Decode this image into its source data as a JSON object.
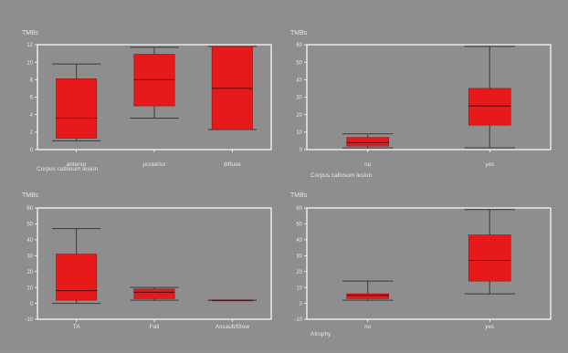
{
  "colors": {
    "background": "#8e8e8e",
    "frame": "#ffffff",
    "box_fill": "#e8191a",
    "box_stroke": "#9a1010",
    "whisker": "#3a3a3a",
    "text": "#e6e6e6"
  },
  "chart_data": [
    {
      "type": "boxplot",
      "ylabel": "TMBs",
      "xlabel": "Corpus callosum lesion",
      "ylim": [
        0,
        12
      ],
      "yticks": [
        0,
        2,
        4,
        6,
        8,
        10,
        12
      ],
      "categories": [
        "anterior",
        "posterior",
        "diffuse"
      ],
      "boxes": [
        {
          "min": 1.0,
          "q1": 1.3,
          "median": 3.6,
          "q3": 8.1,
          "max": 9.8
        },
        {
          "min": 3.6,
          "q1": 5.0,
          "median": 8.0,
          "q3": 10.9,
          "max": 11.7
        },
        {
          "min": 2.3,
          "q1": 2.3,
          "median": 7.0,
          "q3": 11.8,
          "max": 11.8
        }
      ]
    },
    {
      "type": "boxplot",
      "ylabel": "TMBs",
      "xlabel": "Corpus callosum lesion",
      "ylim": [
        0,
        60
      ],
      "yticks": [
        0,
        10,
        20,
        30,
        40,
        50,
        60
      ],
      "categories": [
        "no",
        "yes"
      ],
      "boxes": [
        {
          "min": 1,
          "q1": 2,
          "median": 4,
          "q3": 7,
          "max": 9
        },
        {
          "min": 1,
          "q1": 14,
          "median": 25,
          "q3": 35,
          "max": 59
        }
      ]
    },
    {
      "type": "boxplot",
      "ylabel": "TMBs",
      "xlabel": "",
      "ylim": [
        -10,
        60
      ],
      "yticks": [
        -10,
        0,
        10,
        20,
        30,
        40,
        50,
        60
      ],
      "categories": [
        "TA",
        "Fall",
        "Assault/Blow"
      ],
      "boxes": [
        {
          "min": 0,
          "q1": 2,
          "median": 8,
          "q3": 31,
          "max": 47
        },
        {
          "min": 2,
          "q1": 3,
          "median": 7,
          "q3": 9,
          "max": 10
        },
        {
          "min": 2,
          "q1": 2,
          "median": 2,
          "q3": 2,
          "max": 2
        }
      ]
    },
    {
      "type": "boxplot",
      "ylabel": "TMBs",
      "xlabel": "Atrophy",
      "ylim": [
        -10,
        60
      ],
      "yticks": [
        -10,
        0,
        10,
        20,
        30,
        40,
        50,
        60
      ],
      "categories": [
        "no",
        "yes"
      ],
      "boxes": [
        {
          "min": 2,
          "q1": 3,
          "median": 5,
          "q3": 6,
          "max": 14
        },
        {
          "min": 6,
          "q1": 14,
          "median": 27,
          "q3": 43,
          "max": 59
        }
      ]
    }
  ]
}
